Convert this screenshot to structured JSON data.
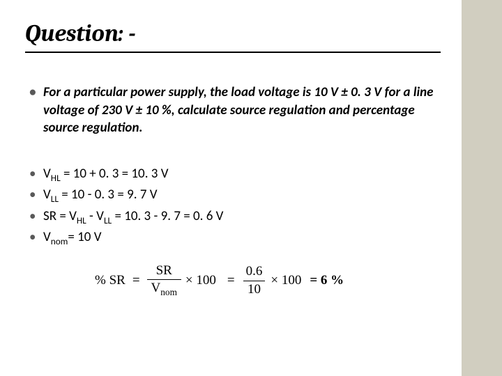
{
  "title": {
    "text": "Question: -",
    "fontsize": 34
  },
  "question": {
    "text": "For a particular power supply, the load voltage is 10 V ± 0. 3 V for a line voltage of 230 V ± 10 %,  calculate source regulation and percentage source regulation.",
    "fontsize": 19
  },
  "answers": {
    "fontsize": 19,
    "items": [
      {
        "prefix": "V",
        "sub": "HL",
        "rest": " = 10 + 0. 3 = 10. 3 V"
      },
      {
        "prefix": "V",
        "sub": "LL",
        "rest": " = 10 - 0. 3 = 9. 7 V"
      },
      {
        "text_html": "SR = V<sub>HL</sub> - V<sub>LL</sub> = 10. 3 - 9. 7 = 0. 6 V"
      },
      {
        "prefix": "V",
        "sub": "nom",
        "rest": "= 10 V"
      }
    ]
  },
  "formula": {
    "fontsize": 19,
    "lhs": "% SR",
    "frac1": {
      "num": "SR",
      "den_prefix": "V",
      "den_sub": "nom"
    },
    "times1": "× 100",
    "frac2": {
      "num": "0.6",
      "den": "10"
    },
    "times2": "× 100",
    "result": "= 6 %"
  },
  "colors": {
    "background": "#ffffff",
    "right_band": "#d1cec0",
    "text": "#000000",
    "bullet": "#595959",
    "underline": "#000000"
  }
}
